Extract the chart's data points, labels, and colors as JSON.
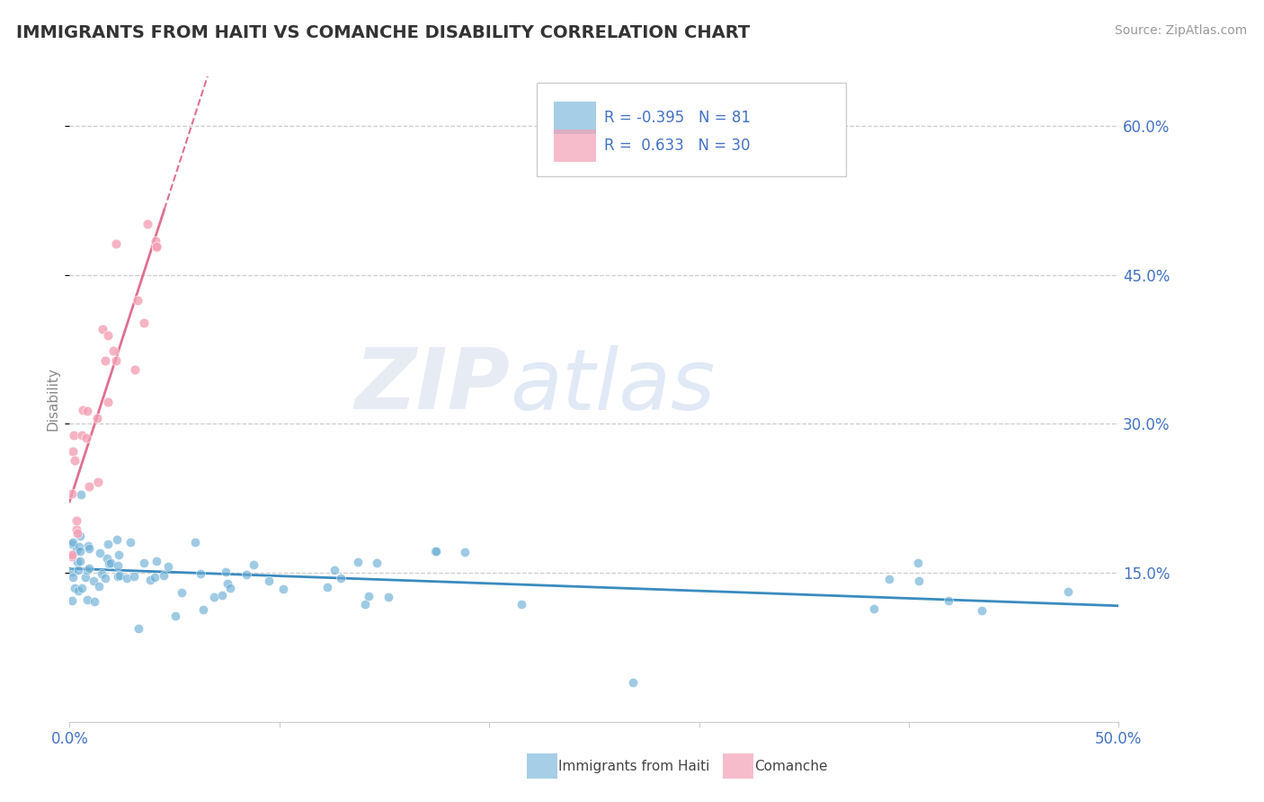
{
  "title": "IMMIGRANTS FROM HAITI VS COMANCHE DISABILITY CORRELATION CHART",
  "source": "Source: ZipAtlas.com",
  "ylabel": "Disability",
  "xlim": [
    0.0,
    0.5
  ],
  "ylim": [
    0.0,
    0.65
  ],
  "yticks_right": [
    0.15,
    0.3,
    0.45,
    0.6
  ],
  "ytick_right_labels": [
    "15.0%",
    "30.0%",
    "45.0%",
    "60.0%"
  ],
  "haiti_R": -0.395,
  "haiti_N": 81,
  "comanche_R": 0.633,
  "comanche_N": 30,
  "haiti_color": "#6baed6",
  "comanche_color": "#f4a0b5",
  "haiti_line_color": "#3a8bbf",
  "comanche_line_color": "#e07090",
  "watermark_zip": "ZIP",
  "watermark_atlas": "atlas",
  "background_color": "#ffffff",
  "grid_color": "#cccccc",
  "legend_text_color": "#4472c4",
  "axis_tick_color": "#4472c4"
}
